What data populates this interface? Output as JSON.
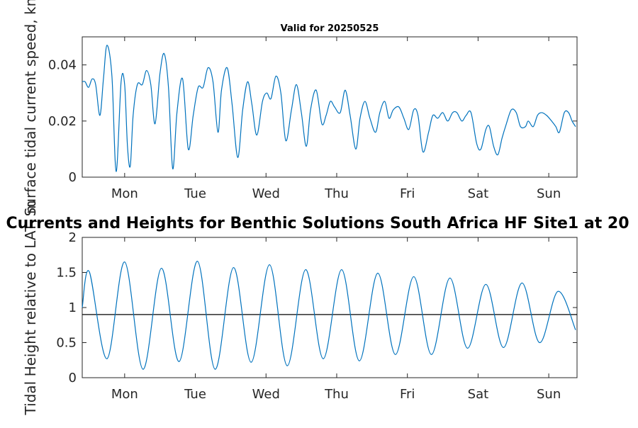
{
  "chart_data": [
    {
      "type": "line",
      "title": "Valid for 20250525",
      "ylabel": "Surface tidal current speed, kn",
      "xlabel": "",
      "ylim": [
        0,
        0.05
      ],
      "yticks": [
        0,
        0.02,
        0.04
      ],
      "ytick_labels": [
        "0",
        "0.02",
        "0.04"
      ],
      "xlim": [
        0,
        7
      ],
      "xticks": [
        0.6,
        1.6,
        2.6,
        3.6,
        4.6,
        5.6,
        6.6
      ],
      "xtick_labels": [
        "Mon",
        "Tue",
        "Wed",
        "Thu",
        "Fri",
        "Sat",
        "Sun"
      ],
      "grid": false,
      "series": [
        {
          "color": "#0072BD",
          "x": [
            0.0,
            0.04,
            0.09,
            0.14,
            0.19,
            0.25,
            0.3,
            0.35,
            0.42,
            0.48,
            0.55,
            0.6,
            0.64,
            0.68,
            0.72,
            0.78,
            0.85,
            0.91,
            0.97,
            1.03,
            1.1,
            1.16,
            1.22,
            1.28,
            1.34,
            1.42,
            1.5,
            1.57,
            1.64,
            1.71,
            1.78,
            1.85,
            1.92,
            1.97,
            2.05,
            2.12,
            2.2,
            2.27,
            2.34,
            2.4,
            2.47,
            2.55,
            2.61,
            2.67,
            2.74,
            2.81,
            2.88,
            2.96,
            3.03,
            3.1,
            3.17,
            3.23,
            3.31,
            3.39,
            3.45,
            3.51,
            3.57,
            3.65,
            3.72,
            3.79,
            3.87,
            3.93,
            4.0,
            4.07,
            4.15,
            4.21,
            4.28,
            4.34,
            4.4,
            4.48,
            4.55,
            4.62,
            4.69,
            4.75,
            4.82,
            4.9,
            4.96,
            5.03,
            5.1,
            5.17,
            5.24,
            5.3,
            5.37,
            5.43,
            5.5,
            5.58,
            5.64,
            5.71,
            5.76,
            5.82,
            5.88,
            5.94,
            6.0,
            6.07,
            6.14,
            6.2,
            6.27,
            6.31,
            6.38,
            6.44,
            6.5,
            6.57,
            6.64,
            6.7,
            6.75,
            6.82,
            6.88,
            6.93,
            6.98
          ],
          "y": [
            0.034,
            0.034,
            0.032,
            0.035,
            0.033,
            0.022,
            0.035,
            0.047,
            0.036,
            0.002,
            0.034,
            0.033,
            0.011,
            0.004,
            0.022,
            0.033,
            0.033,
            0.038,
            0.033,
            0.019,
            0.037,
            0.044,
            0.032,
            0.003,
            0.023,
            0.035,
            0.01,
            0.022,
            0.032,
            0.032,
            0.039,
            0.034,
            0.016,
            0.031,
            0.039,
            0.026,
            0.007,
            0.024,
            0.034,
            0.026,
            0.015,
            0.027,
            0.03,
            0.028,
            0.036,
            0.03,
            0.013,
            0.024,
            0.033,
            0.023,
            0.011,
            0.024,
            0.031,
            0.019,
            0.022,
            0.027,
            0.025,
            0.023,
            0.031,
            0.022,
            0.01,
            0.021,
            0.027,
            0.021,
            0.016,
            0.023,
            0.027,
            0.021,
            0.024,
            0.025,
            0.021,
            0.017,
            0.024,
            0.022,
            0.009,
            0.016,
            0.022,
            0.021,
            0.023,
            0.02,
            0.023,
            0.023,
            0.02,
            0.022,
            0.023,
            0.012,
            0.01,
            0.017,
            0.018,
            0.011,
            0.008,
            0.014,
            0.019,
            0.024,
            0.023,
            0.018,
            0.018,
            0.02,
            0.018,
            0.022,
            0.023,
            0.022,
            0.02,
            0.018,
            0.016,
            0.023,
            0.023,
            0.02,
            0.018
          ]
        }
      ]
    },
    {
      "type": "line",
      "title": "Currents and Heights for Benthic Solutions South Africa HF Site1 at 20",
      "ylabel": "Tidal Height relative to LAT, m",
      "xlabel": "",
      "ylim": [
        0,
        2
      ],
      "yticks": [
        0,
        0.5,
        1,
        1.5,
        2
      ],
      "ytick_labels": [
        "0",
        "0.5",
        "1",
        "1.5",
        "2"
      ],
      "xlim": [
        0,
        7
      ],
      "xticks": [
        0.6,
        1.6,
        2.6,
        3.6,
        4.6,
        5.6,
        6.6
      ],
      "xtick_labels": [
        "Mon",
        "Tue",
        "Wed",
        "Thu",
        "Fri",
        "Sat",
        "Sun"
      ],
      "grid": false,
      "reference_line_y": 0.9,
      "series": [
        {
          "color": "#0072BD",
          "x": [
            0.0,
            0.1,
            0.35,
            0.6,
            0.86,
            1.12,
            1.37,
            1.63,
            1.88,
            2.14,
            2.39,
            2.65,
            2.9,
            3.16,
            3.41,
            3.67,
            3.92,
            4.18,
            4.43,
            4.69,
            4.94,
            5.2,
            5.45,
            5.71,
            5.96,
            6.22,
            6.47,
            6.73,
            6.98
          ],
          "y": [
            1.0,
            1.51,
            0.27,
            1.65,
            0.12,
            1.56,
            0.23,
            1.66,
            0.12,
            1.57,
            0.22,
            1.61,
            0.17,
            1.54,
            0.27,
            1.54,
            0.24,
            1.49,
            0.33,
            1.44,
            0.33,
            1.42,
            0.42,
            1.33,
            0.43,
            1.35,
            0.5,
            1.23,
            0.68
          ]
        }
      ]
    }
  ]
}
